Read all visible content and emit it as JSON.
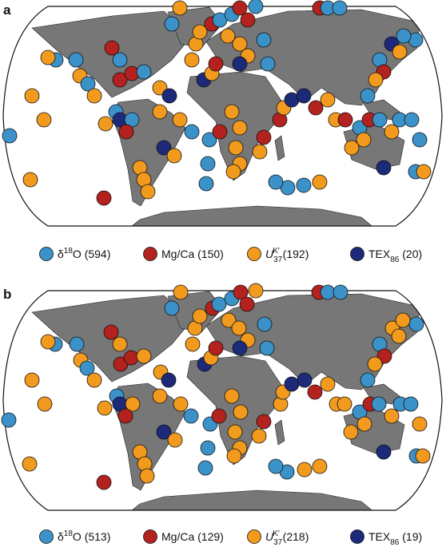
{
  "panels": [
    {
      "label": "a",
      "legend": [
        {
          "parts": [
            "δ",
            "18",
            "O (594)"
          ]
        },
        {
          "parts": [
            "Mg/Ca (150)"
          ]
        },
        {
          "parts": [
            "U",
            "37",
            "K′",
            " (192)"
          ]
        },
        {
          "parts": [
            "TEX",
            "86",
            " (20)"
          ]
        }
      ]
    },
    {
      "label": "b",
      "legend": [
        {
          "parts": [
            "δ",
            "18",
            "O (513)"
          ]
        },
        {
          "parts": [
            "Mg/Ca (129)"
          ]
        },
        {
          "parts": [
            "U",
            "37",
            "K′",
            " (218)"
          ]
        },
        {
          "parts": [
            "TEX",
            "86",
            " (19)"
          ]
        }
      ]
    }
  ]
}
